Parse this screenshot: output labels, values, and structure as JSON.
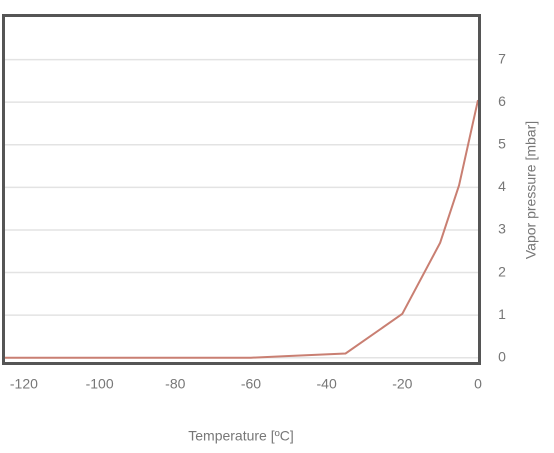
{
  "chart_data": {
    "type": "line",
    "x_label": "Temperature [ºC]",
    "y_label": "Vapor pressure [mbar]",
    "x": [
      -125,
      -60,
      -50,
      -35,
      -20,
      -10,
      -5,
      0
    ],
    "values": [
      0,
      0,
      0.04,
      0.1,
      1.03,
      2.7,
      4.05,
      6.05
    ],
    "color": "#c97f72",
    "xlim": [
      -125,
      0
    ],
    "xticks": [
      -120,
      -100,
      -80,
      -60,
      -40,
      -20,
      0
    ],
    "ylim": [
      -0.1,
      8
    ],
    "yticks": [
      0,
      1,
      2,
      3,
      4,
      5,
      6,
      7
    ],
    "grid": true
  }
}
